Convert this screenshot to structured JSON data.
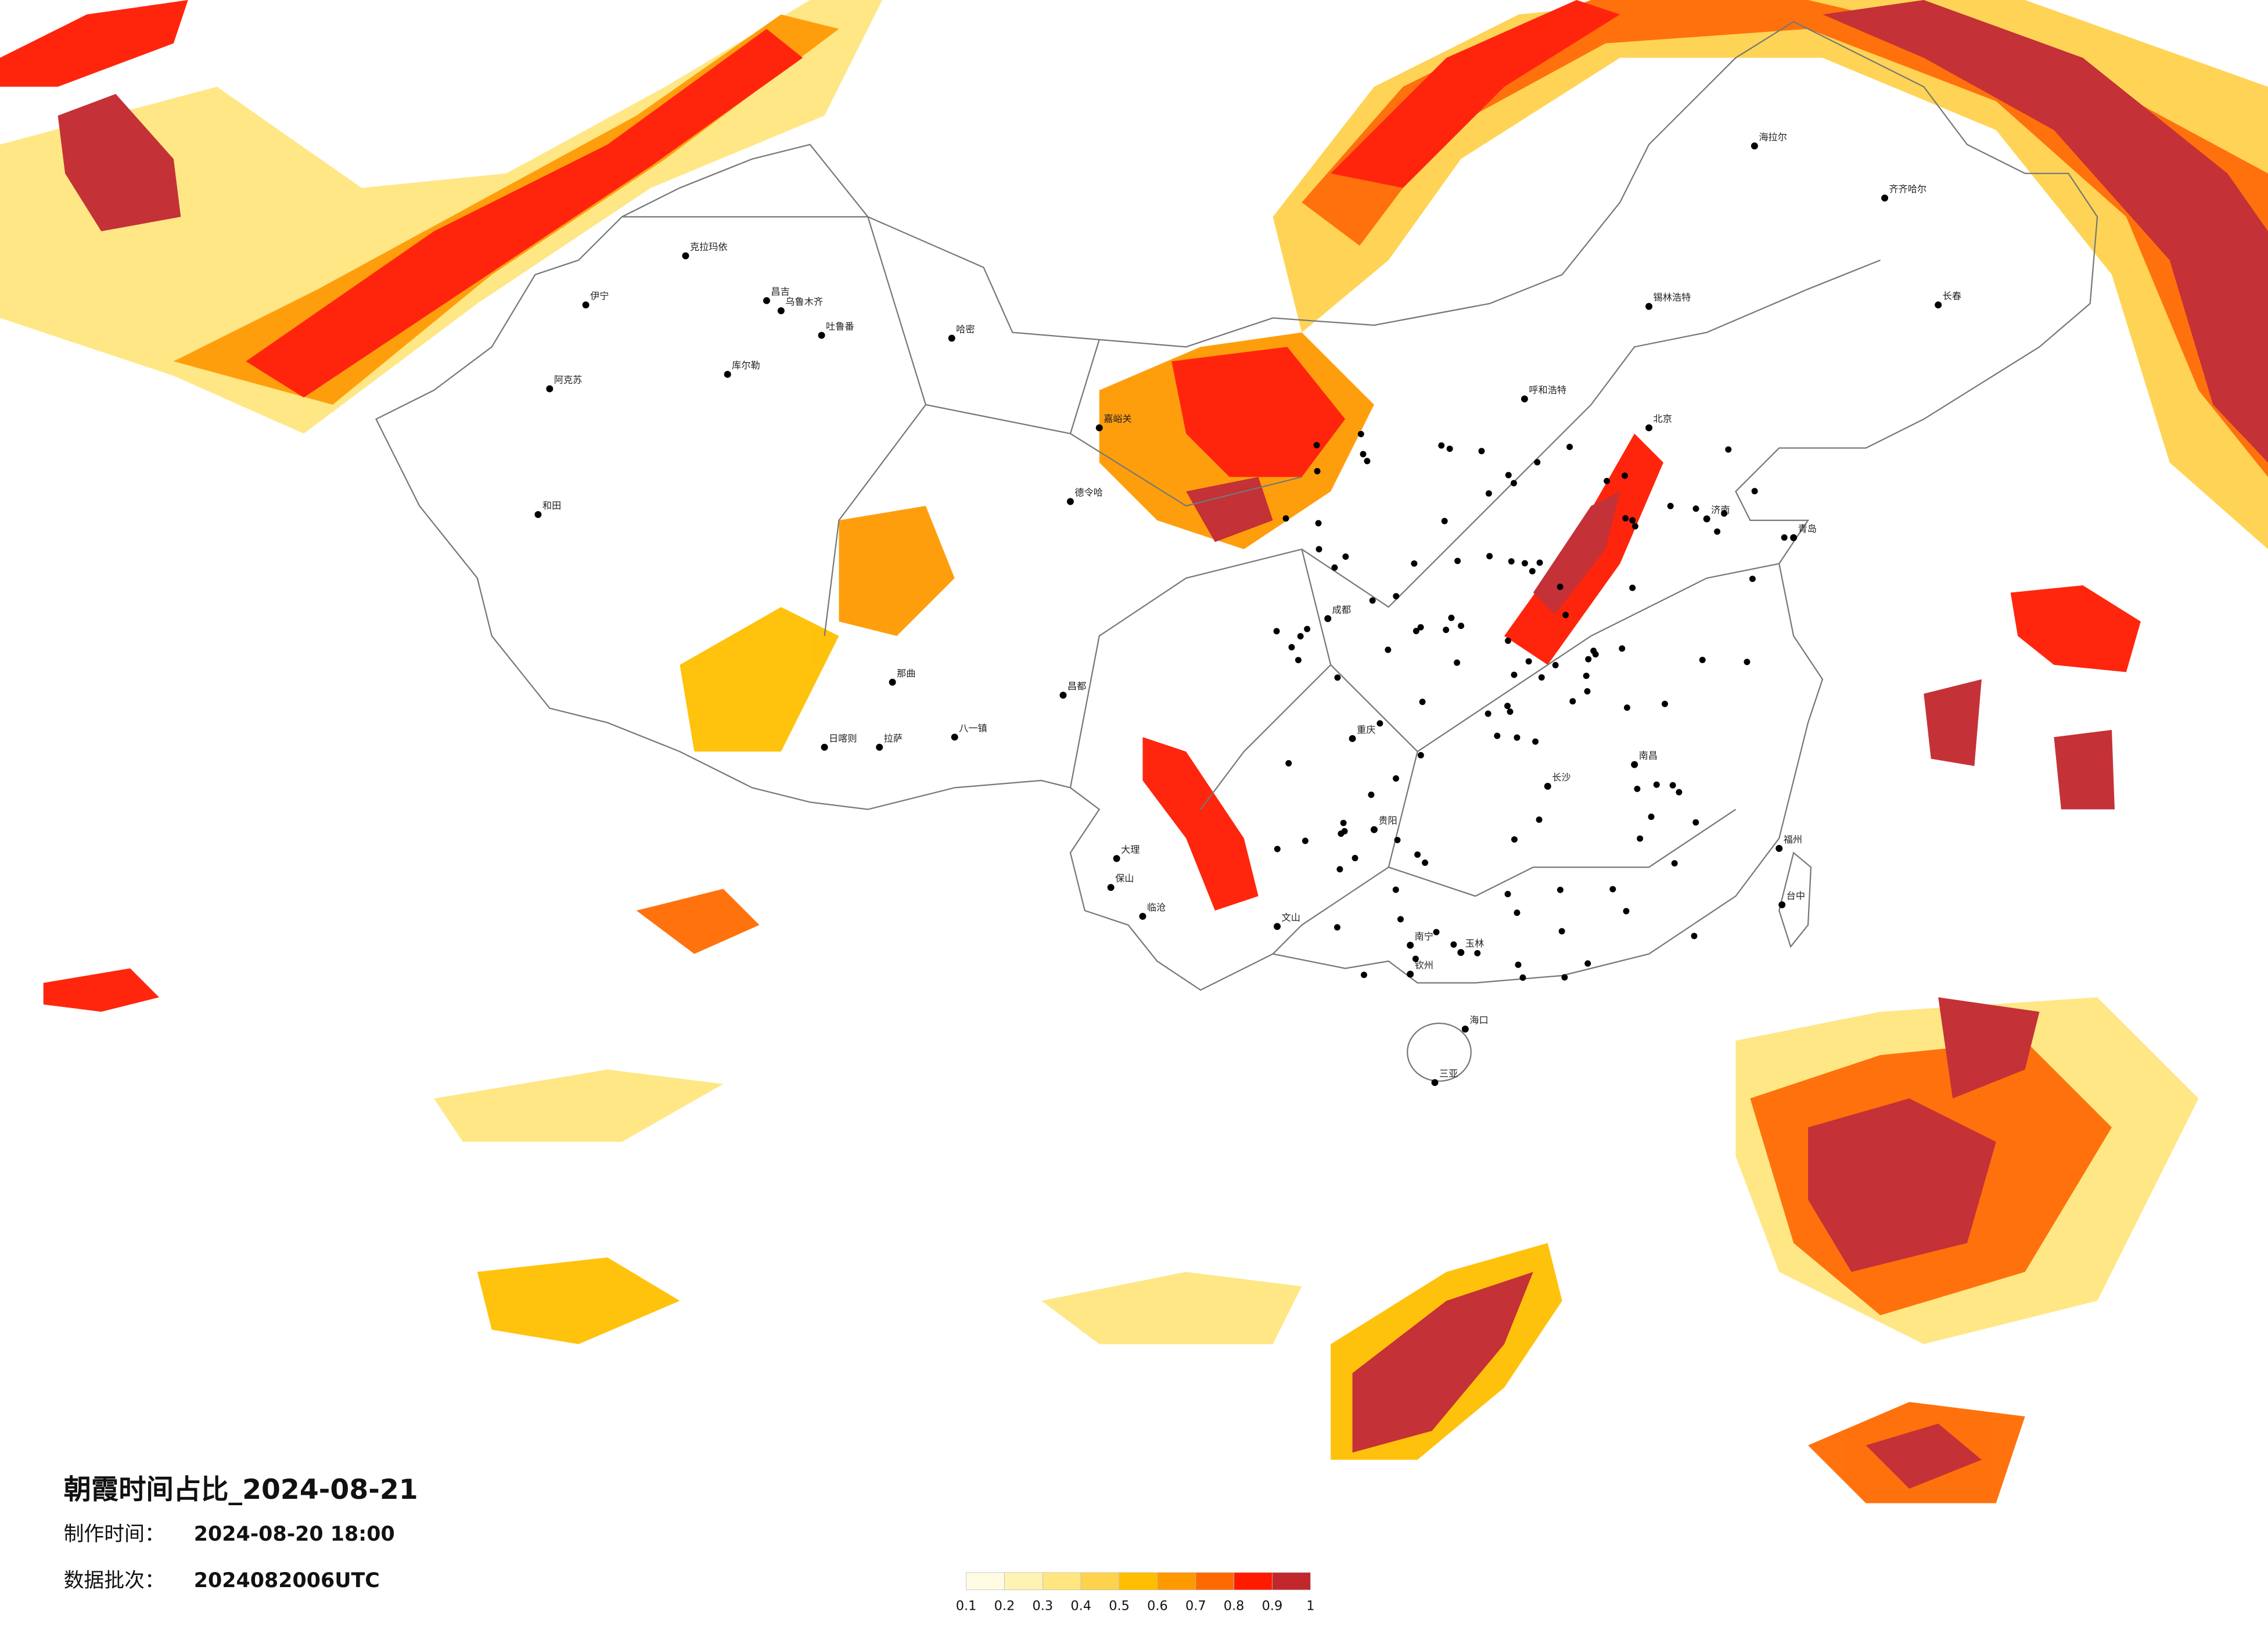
{
  "title": "朝霞时间占比_2024-08-21",
  "make_time_label": "制作时间：",
  "make_time": "2024-08-20 18:00",
  "batch_label": "数据批次：",
  "batch": "2024082006UTC",
  "legend": {
    "ticks": [
      0.1,
      0.2,
      0.3,
      0.4,
      0.5,
      0.6,
      0.7,
      0.8,
      0.9,
      1
    ],
    "colors": [
      "#fffbe3",
      "#fff3b3",
      "#ffe680",
      "#ffd24d",
      "#ffbf00",
      "#ff9900",
      "#ff6a00",
      "#ff1a00",
      "#c1272d"
    ]
  },
  "cities": [
    "克拉玛依",
    "昌吉",
    "乌鲁木齐",
    "吐鲁番",
    "哈密",
    "库尔勒",
    "阿克苏",
    "伊宁",
    "和田",
    "那曲",
    "拉萨",
    "日喀则",
    "八一镇",
    "昌都",
    "德令哈",
    "嘉峪关",
    "海拉尔",
    "齐齐哈尔",
    "长春",
    "呼和浩特",
    "锡林浩特",
    "北京",
    "济南",
    "成都",
    "重庆",
    "贵阳",
    "文山",
    "南宁",
    "海口",
    "三亚",
    "福州",
    "台中",
    "南昌",
    "长沙",
    "青岛",
    "大理",
    "保山",
    "临沧",
    "玉林",
    "钦州"
  ]
}
